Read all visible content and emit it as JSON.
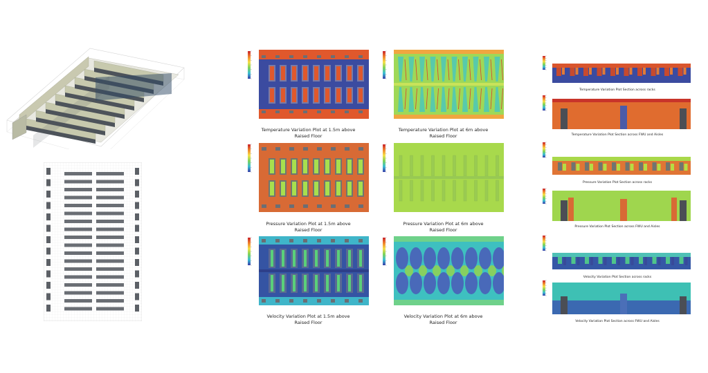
{
  "plots": {
    "temp_1_5m": {
      "caption_line1": "Temperature Variation Plot at 1.5m above",
      "caption_line2": "Raised Floor"
    },
    "temp_6m": {
      "caption_line1": "Temperature Variation Plot at 6m above",
      "caption_line2": "Raised Floor"
    },
    "pressure_1_5m": {
      "caption_line1": "Pressure Variation Plot at 1.5m above",
      "caption_line2": "Raised Floor"
    },
    "pressure_6m": {
      "caption_line1": "Pressure Variation Plot at 6m above",
      "caption_line2": "Raised Floor"
    },
    "velocity_1_5m": {
      "caption_line1": "Velocity Variation Plot at 1.5m above",
      "caption_line2": "Raised Floor"
    },
    "velocity_6m": {
      "caption_line1": "Velocity Variation Plot at 6m above",
      "caption_line2": "Raised Floor"
    }
  },
  "sections": {
    "temp_racks": "Temperature Variation Plot Section across racks",
    "temp_fwu": "Temperature Variation Plot Section across FWU and Aisles",
    "pressure_racks": "Pressure Variation Plot Section across racks",
    "pressure_fwu": "Pressure Variation Plot Section across FWU and Aisles",
    "velocity_racks": "Velocity Variation Plot Section across racks",
    "velocity_fwu": "Velocity Variation Plot Section across FWU and Aisles"
  },
  "colors": {
    "hot": "#e0582c",
    "cold": "#3b4ba0",
    "mid_green": "#8fd14f",
    "cyan": "#3fc3c8",
    "rack_gray": "#5d6168"
  }
}
